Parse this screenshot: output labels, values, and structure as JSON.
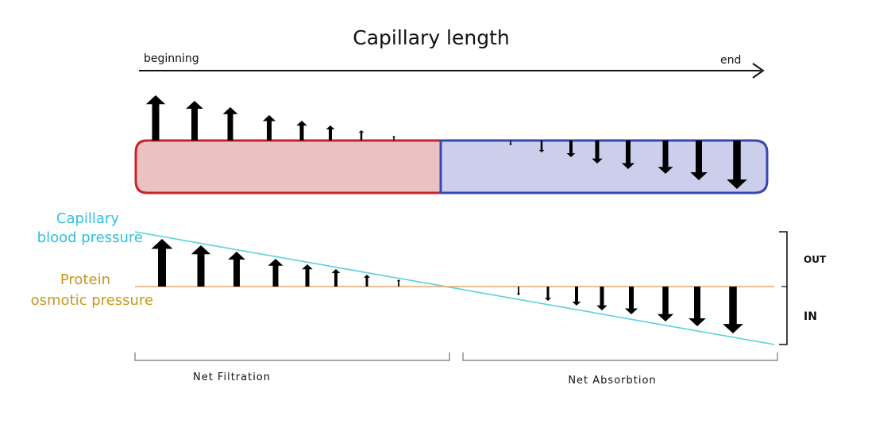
{
  "title": "Capillary length",
  "axis": {
    "start_label": "beginning",
    "end_label": "end"
  },
  "pressures": {
    "capillary_label_line1": "Capillary",
    "capillary_label_line2": "blood pressure",
    "protein_label_line1": "Protein",
    "protein_label_line2": "osmotic pressure"
  },
  "direction": {
    "out_label": "OUT",
    "in_label": "IN"
  },
  "zones": {
    "filtration_label": "Net Filtration",
    "absorption_label": "Net Absorbtion"
  },
  "colors": {
    "arterial_border": "#c8232c",
    "arterial_fill": "#ecc1c1",
    "venous_border": "#3548b0",
    "venous_fill": "#cbcfec",
    "capillary_pressure_line": "#5ccfe0",
    "capillary_pressure_text": "#2ec0e6",
    "protein_pressure_line": "#e0a872",
    "protein_pressure_text": "#c9961e",
    "arrow": "#000000"
  },
  "icons": {
    "up_arrow": "up-arrow-icon",
    "down_arrow": "down-arrow-icon",
    "axis_arrow": "arrowhead-icon"
  }
}
